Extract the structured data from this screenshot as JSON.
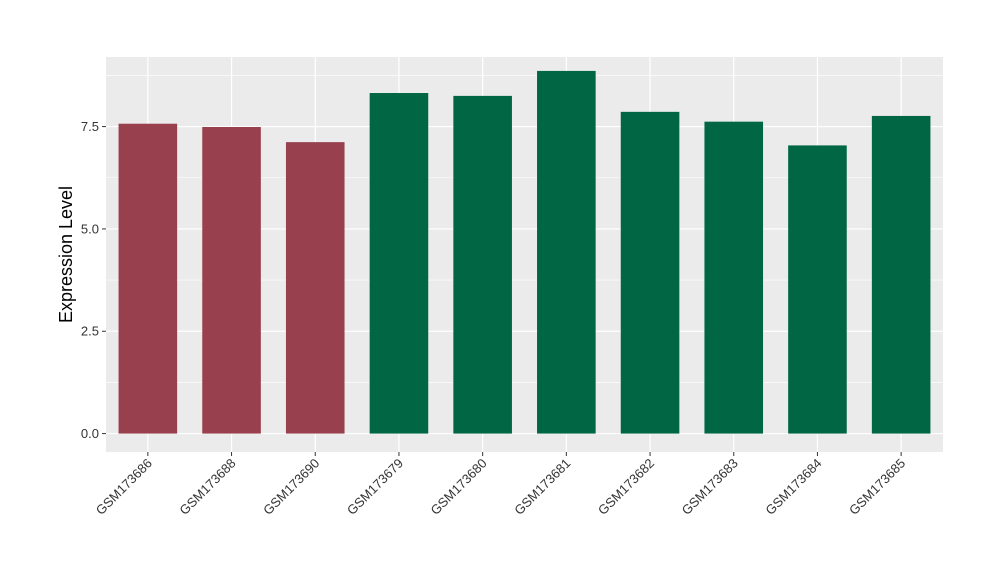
{
  "chart_data": {
    "type": "bar",
    "title": "",
    "xlabel": "",
    "ylabel": "Expression Level",
    "ylim": [
      -0.45,
      9.2
    ],
    "yticks": [
      0.0,
      2.5,
      5.0,
      7.5
    ],
    "ytick_labels": [
      "0.0",
      "2.5",
      "5.0",
      "7.5"
    ],
    "grid": true,
    "legend": "none",
    "categories": [
      "GSM173686",
      "GSM173688",
      "GSM173690",
      "GSM173679",
      "GSM173680",
      "GSM173681",
      "GSM173682",
      "GSM173683",
      "GSM173684",
      "GSM173685"
    ],
    "values": [
      7.57,
      7.49,
      7.12,
      8.32,
      8.25,
      8.86,
      7.86,
      7.62,
      7.04,
      7.76
    ],
    "bar_colors": [
      "#99404f",
      "#99404f",
      "#99404f",
      "#006644",
      "#006644",
      "#006644",
      "#006644",
      "#006644",
      "#006644",
      "#006644"
    ],
    "panel_background": "#ebebeb",
    "grid_color": "#ffffff"
  }
}
